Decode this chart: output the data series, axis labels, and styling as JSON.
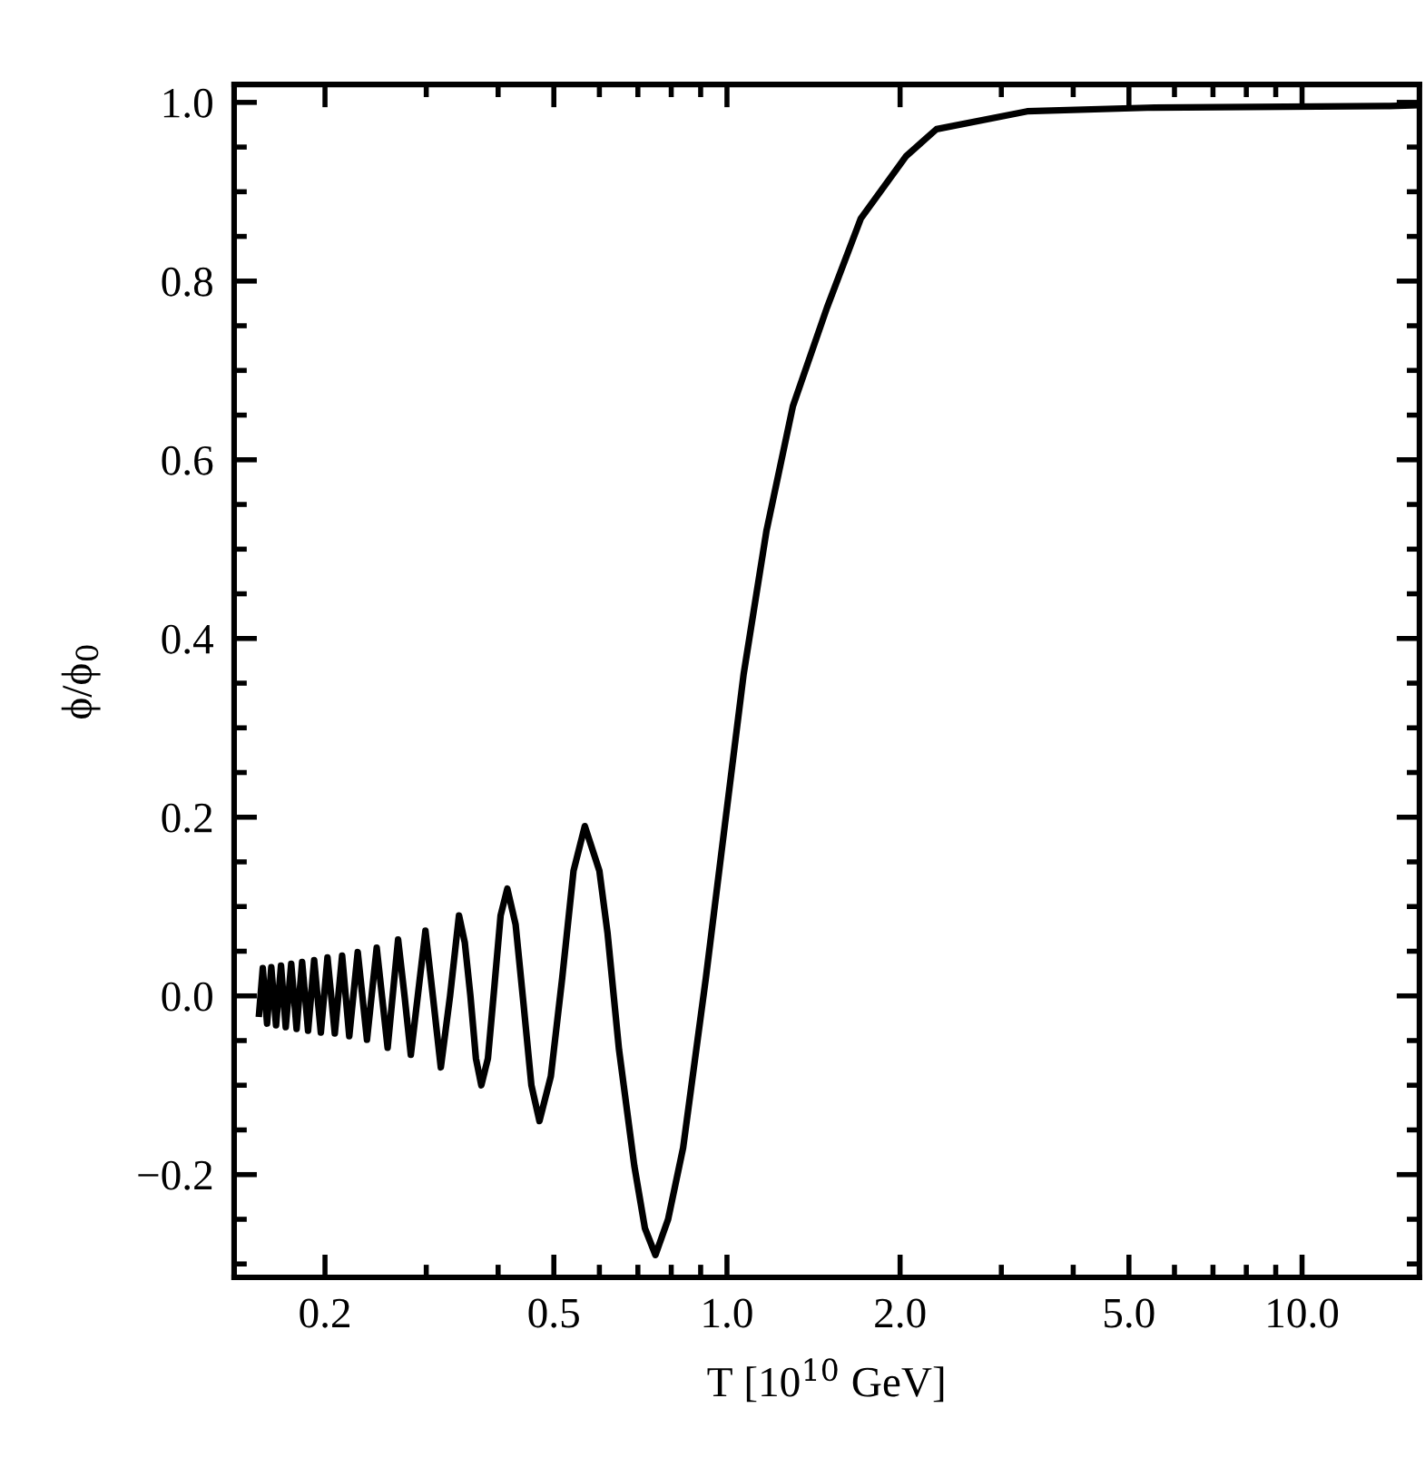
{
  "chart_data": {
    "type": "line",
    "xlabel": "T [10$^{10}$ GeV]",
    "ylabel": "ϕ/ϕ$_{0}$",
    "log": "x",
    "grid": false,
    "marker": "none",
    "line_style": "solid",
    "xlim": [
      0.139,
      16
    ],
    "ylim": [
      -0.315,
      1.02
    ],
    "xticks": [
      {
        "value": 0.2,
        "label": "0.2"
      },
      {
        "value": 0.5,
        "label": "0.5"
      },
      {
        "value": 1,
        "label": "1.0"
      },
      {
        "value": 2,
        "label": "2.0"
      },
      {
        "value": 5,
        "label": "5.0"
      },
      {
        "value": 10,
        "label": "10.0"
      }
    ],
    "yticks": [
      {
        "value": -0.2,
        "label": "−0.2"
      },
      {
        "value": 0,
        "label": "0.0"
      },
      {
        "value": 0.2,
        "label": "0.2"
      },
      {
        "value": 0.4,
        "label": "0.4"
      },
      {
        "value": 0.6,
        "label": "0.6"
      },
      {
        "value": 0.8,
        "label": "0.8"
      },
      {
        "value": 1,
        "label": "1.0"
      }
    ],
    "series": [
      {
        "color": "#000000",
        "x": [
          0.1536,
          0.1559,
          0.1586,
          0.1613,
          0.1644,
          0.1677,
          0.1709,
          0.1747,
          0.1785,
          0.1825,
          0.1869,
          0.1915,
          0.1967,
          0.202,
          0.208,
          0.2142,
          0.2204,
          0.228,
          0.2366,
          0.246,
          0.257,
          0.268,
          0.275,
          0.282,
          0.29,
          0.299,
          0.308,
          0.318,
          0.33,
          0.342,
          0.35,
          0.358,
          0.366,
          0.374,
          0.384,
          0.394,
          0.404,
          0.415,
          0.429,
          0.443,
          0.457,
          0.472,
          0.494,
          0.517,
          0.541,
          0.566,
          0.6,
          0.62,
          0.649,
          0.69,
          0.72,
          0.751,
          0.79,
          0.839,
          0.919,
          0.991,
          1.069,
          1.171,
          1.302,
          1.492,
          1.709,
          2.05,
          2.314,
          3.327,
          5.38,
          14.2,
          16
        ],
        "values": [
          -0.02,
          0.031,
          -0.031,
          0.032,
          -0.033,
          0.034,
          -0.035,
          0.036,
          -0.037,
          0.038,
          -0.039,
          0.04,
          -0.041,
          0.043,
          -0.042,
          0.045,
          -0.045,
          0.049,
          -0.049,
          0.054,
          -0.058,
          0.063,
          0.0,
          -0.066,
          0.0,
          0.073,
          0.0,
          -0.08,
          0.0,
          0.09,
          0.06,
          0.0,
          -0.07,
          -0.1,
          -0.07,
          0.01,
          0.09,
          0.12,
          0.08,
          -0.01,
          -0.1,
          -0.14,
          -0.09,
          0.02,
          0.14,
          0.19,
          0.14,
          0.07,
          -0.06,
          -0.19,
          -0.26,
          -0.29,
          -0.25,
          -0.17,
          0.02,
          0.19,
          0.36,
          0.52,
          0.66,
          0.77,
          0.87,
          0.94,
          0.97,
          0.99,
          0.994,
          0.996,
          0.997
        ]
      }
    ]
  }
}
